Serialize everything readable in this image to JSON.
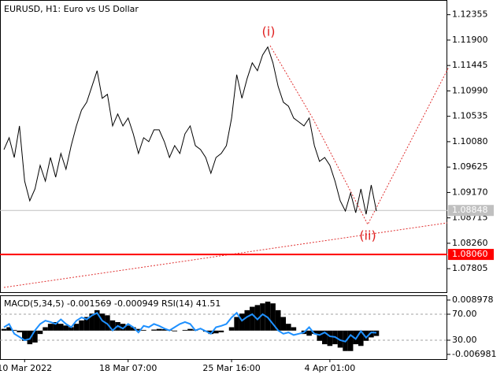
{
  "chart_data": [
    {
      "type": "line",
      "title": "EURUSD, H1:  Euro vs US Dollar",
      "color": "#000000",
      "categories": [
        null,
        null,
        null,
        null,
        "10 Mar 2022",
        null,
        null,
        null,
        null,
        null,
        null,
        null,
        null,
        null,
        null,
        null,
        null,
        null,
        null,
        null,
        null,
        null,
        null,
        null,
        "18 Mar 07:00",
        null,
        null,
        null,
        null,
        null,
        null,
        null,
        null,
        null,
        null,
        null,
        null,
        null,
        null,
        null,
        null,
        null,
        null,
        null,
        "25 Mar 16:00",
        null,
        null,
        null,
        null,
        null,
        null,
        null,
        null,
        null,
        null,
        null,
        null,
        null,
        null,
        null,
        null,
        null,
        null,
        "4 Apr 01:00",
        null,
        null,
        null,
        null,
        null,
        null,
        null,
        null,
        null
      ],
      "values": [
        1.09939,
        1.10151,
        1.09797,
        1.10363,
        1.09374,
        1.0902,
        1.09232,
        1.09656,
        1.09374,
        1.09797,
        1.09444,
        1.09868,
        1.09586,
        1.10009,
        1.10363,
        1.10645,
        1.10787,
        1.11069,
        1.11352,
        1.10857,
        1.10928,
        1.10363,
        1.10575,
        1.10363,
        1.10504,
        1.10221,
        1.09868,
        1.10151,
        1.1008,
        1.10292,
        1.10292,
        1.1008,
        1.09797,
        1.10009,
        1.09868,
        1.10221,
        1.10363,
        1.10009,
        1.09939,
        1.09797,
        1.09515,
        1.09797,
        1.09868,
        1.10009,
        1.10504,
        1.11281,
        1.10857,
        1.1121,
        1.11493,
        1.11352,
        1.11634,
        1.11776,
        1.11493,
        1.11069,
        1.10787,
        1.10716,
        1.10504,
        1.10433,
        1.10363,
        1.10504,
        1.10009,
        1.09727,
        1.09797,
        1.09656,
        1.09374,
        1.0902,
        1.08837,
        1.09162,
        1.08808,
        1.09232,
        1.0878,
        1.09303,
        1.08837
      ],
      "ylim": [
        1.0737,
        1.1259
      ],
      "yticks": [
        {
          "value": 1.12355,
          "label": "1.12355"
        },
        {
          "value": 1.119,
          "label": "1.11900"
        },
        {
          "value": 1.11445,
          "label": "1.11445"
        },
        {
          "value": 1.1099,
          "label": "1.10990"
        },
        {
          "value": 1.10535,
          "label": "1.10535"
        },
        {
          "value": 1.1008,
          "label": "1.10080"
        },
        {
          "value": 1.09625,
          "label": "1.09625"
        },
        {
          "value": 1.0917,
          "label": "1.09170"
        },
        {
          "value": 1.08715,
          "label": "1.08715"
        },
        {
          "value": 1.0826,
          "label": "1.08260"
        },
        {
          "value": 1.07805,
          "label": "1.07805"
        }
      ],
      "hlines": [
        {
          "value": 1.08848,
          "label": "1.08848",
          "color": "#c0c0c0"
        },
        {
          "value": 1.0806,
          "label": "1.08060",
          "color": "#ff0000"
        }
      ],
      "annotations": [
        "(i)",
        "(ii)"
      ]
    },
    {
      "type": "macd",
      "title": "MACD(5,34,5) -0.001569 -0.000949 RSI(14) 41.51",
      "series": [
        {
          "color": "#000000",
          "values": [
            0.0005,
            0.001,
            0.0002,
            -0.0005,
            -0.003,
            -0.004,
            -0.0035,
            -0.001,
            0.001,
            0.002,
            0.0025,
            0.002,
            0.0015,
            0.001,
            0.002,
            0.003,
            0.004,
            0.005,
            0.006,
            0.005,
            0.0045,
            0.003,
            0.0025,
            0.002,
            0.0015,
            0.001,
            0.0005,
            0.0002,
            0,
            0.0003,
            0.0005,
            0.0004,
            0.0002,
            -0.0002,
            0,
            0.0002,
            0.0005,
            0.0003,
            0,
            -0.0003,
            -0.001,
            -0.0008,
            -0.0005,
            0,
            0.001,
            0.004,
            0.005,
            0.006,
            0.007,
            0.0075,
            0.008,
            0.0085,
            0.008,
            0.006,
            0.004,
            0.002,
            0.001,
            0,
            -0.001,
            -0.0015,
            -0.001,
            -0.003,
            -0.004,
            -0.0045,
            -0.004,
            -0.005,
            -0.006,
            -0.006,
            -0.004,
            -0.0045,
            -0.003,
            -0.002,
            -0.001569
          ]
        },
        {
          "color": "#1e90ff",
          "axis": "y2",
          "values": [
            50,
            55,
            40,
            35,
            30,
            32,
            45,
            55,
            60,
            58,
            55,
            62,
            55,
            50,
            60,
            65,
            62,
            68,
            72,
            60,
            55,
            45,
            52,
            48,
            55,
            50,
            42,
            52,
            50,
            55,
            52,
            48,
            45,
            50,
            55,
            58,
            55,
            45,
            48,
            44,
            40,
            50,
            52,
            55,
            65,
            72,
            60,
            66,
            70,
            62,
            70,
            65,
            55,
            45,
            40,
            42,
            38,
            40,
            42,
            50,
            40,
            38,
            42,
            36,
            35,
            30,
            28,
            38,
            32,
            44,
            34,
            42,
            41.51
          ]
        }
      ],
      "ylim": [
        -0.006981,
        0.008978
      ],
      "yticks": [
        0.008978,
        -0.006981
      ],
      "y2lim": [
        8.2,
        91.8
      ],
      "y2ticks": [
        {
          "value": 70,
          "label": "70.00"
        },
        {
          "value": 30,
          "label": "30.00"
        }
      ]
    }
  ]
}
